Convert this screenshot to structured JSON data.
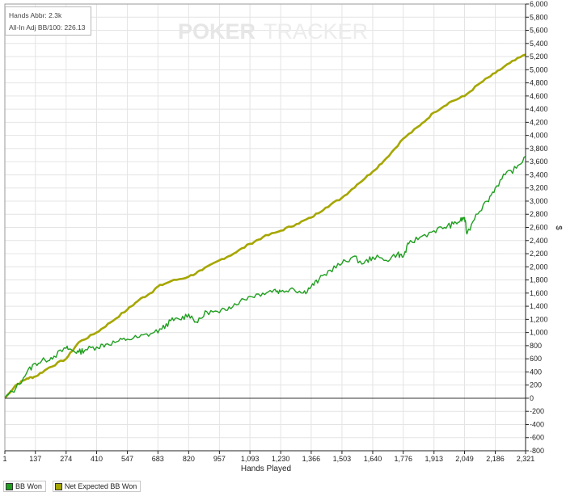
{
  "info": {
    "hands": "Hands Abbr: 2.3k",
    "allin": "All-In Adj BB/100: 226.13"
  },
  "watermark": {
    "part1": "POKER",
    "part2": "TRACKER"
  },
  "colors": {
    "bb_won": "#1f9e1f",
    "net_expected": "#a6a600",
    "grid": "#e4e4e4",
    "zero_line": "#333333"
  },
  "chart_data": {
    "type": "line",
    "xlabel": "Hands Played",
    "ylabel": "$",
    "xlim": [
      1,
      2321
    ],
    "ylim": [
      -800,
      6000
    ],
    "x_ticks": [
      "1",
      "137",
      "274",
      "410",
      "547",
      "683",
      "820",
      "957",
      "1,093",
      "1,230",
      "1,366",
      "1,503",
      "1,640",
      "1,776",
      "1,913",
      "2,049",
      "2,186",
      "2,321"
    ],
    "x_tick_values": [
      1,
      137,
      274,
      410,
      547,
      683,
      820,
      957,
      1093,
      1230,
      1366,
      1503,
      1640,
      1776,
      1913,
      2049,
      2186,
      2321
    ],
    "y_ticks": [
      "6,000",
      "5,800",
      "5,600",
      "5,400",
      "5,200",
      "5,000",
      "4,800",
      "4,600",
      "4,400",
      "4,200",
      "4,000",
      "3,800",
      "3,600",
      "3,400",
      "3,200",
      "3,000",
      "2,800",
      "2,600",
      "2,400",
      "2,200",
      "2,000",
      "1,800",
      "1,600",
      "1,400",
      "1,200",
      "1,000",
      "800",
      "600",
      "400",
      "200",
      "0",
      "-200",
      "-400",
      "-600",
      "-800"
    ],
    "y_tick_values": [
      6000,
      5800,
      5600,
      5400,
      5200,
      5000,
      4800,
      4600,
      4400,
      4200,
      4000,
      3800,
      3600,
      3400,
      3200,
      3000,
      2800,
      2600,
      2400,
      2200,
      2000,
      1800,
      1600,
      1400,
      1200,
      1000,
      800,
      600,
      400,
      200,
      0,
      -200,
      -400,
      -600,
      -800
    ],
    "grid": true,
    "legend_position": "bottom-left",
    "series": [
      {
        "name": "BB Won",
        "color": "#1f9e1f",
        "x": [
          1,
          50,
          100,
          137,
          180,
          220,
          274,
          300,
          330,
          360,
          410,
          450,
          500,
          547,
          600,
          650,
          700,
          740,
          780,
          820,
          860,
          900,
          957,
          1000,
          1050,
          1093,
          1150,
          1200,
          1230,
          1280,
          1330,
          1366,
          1400,
          1450,
          1503,
          1550,
          1600,
          1640,
          1700,
          1750,
          1776,
          1800,
          1850,
          1913,
          1960,
          2000,
          2030,
          2049,
          2060,
          2100,
          2150,
          2186,
          2230,
          2280,
          2321
        ],
        "y": [
          0,
          150,
          400,
          530,
          580,
          640,
          760,
          730,
          700,
          740,
          780,
          820,
          860,
          900,
          930,
          980,
          1050,
          1180,
          1200,
          1280,
          1150,
          1320,
          1300,
          1390,
          1480,
          1550,
          1600,
          1650,
          1620,
          1680,
          1600,
          1700,
          1800,
          1950,
          2050,
          2150,
          2050,
          2150,
          2100,
          2200,
          2150,
          2350,
          2450,
          2550,
          2600,
          2650,
          2700,
          2750,
          2500,
          2800,
          3000,
          3200,
          3400,
          3500,
          3680
        ]
      },
      {
        "name": "Net Expected BB Won",
        "color": "#a6a600",
        "x": [
          1,
          50,
          100,
          137,
          200,
          274,
          330,
          410,
          470,
          547,
          600,
          650,
          683,
          740,
          820,
          880,
          957,
          1020,
          1093,
          1150,
          1230,
          1300,
          1366,
          1430,
          1503,
          1570,
          1640,
          1700,
          1776,
          1850,
          1913,
          1980,
          2049,
          2120,
          2186,
          2250,
          2321
        ],
        "y": [
          0,
          200,
          300,
          330,
          470,
          600,
          850,
          1000,
          1150,
          1350,
          1500,
          1600,
          1700,
          1780,
          1850,
          1950,
          2100,
          2200,
          2350,
          2450,
          2550,
          2650,
          2750,
          2900,
          3050,
          3250,
          3450,
          3650,
          3950,
          4150,
          4350,
          4500,
          4600,
          4800,
          4950,
          5100,
          5230
        ]
      }
    ]
  },
  "legend": {
    "items": [
      {
        "label": "BB Won",
        "color": "#1f9e1f"
      },
      {
        "label": "Net Expected BB Won",
        "color": "#a6a600"
      }
    ]
  }
}
